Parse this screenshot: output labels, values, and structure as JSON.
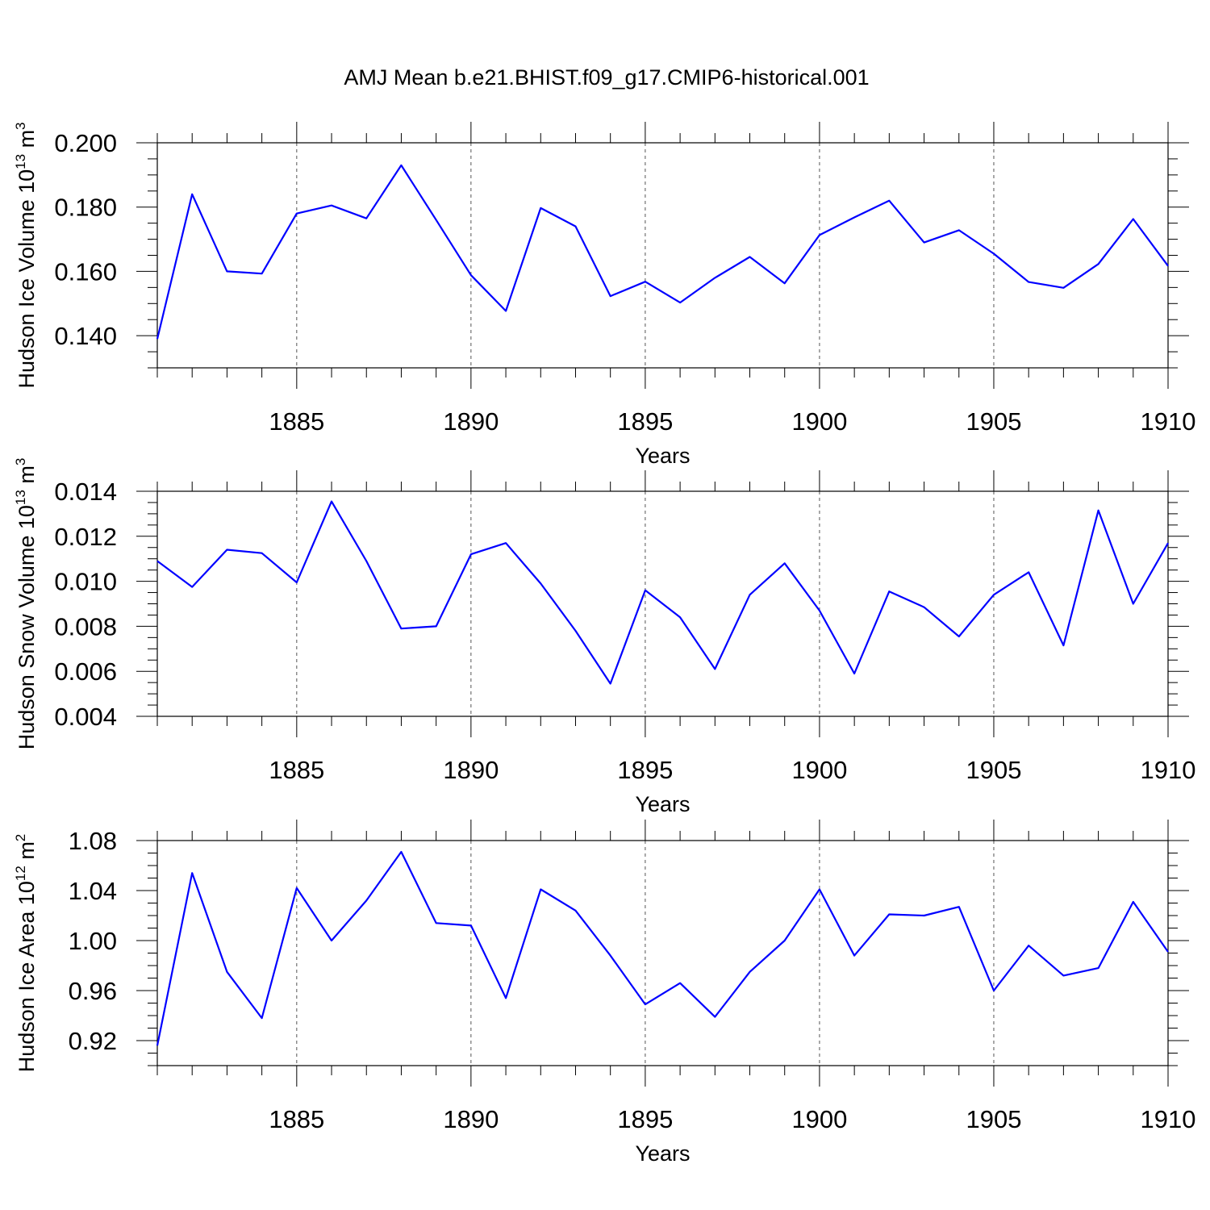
{
  "title": "AMJ Mean b.e21.BHIST.f09_g17.CMIP6-historical.001",
  "colors": {
    "line": "#0000ff",
    "axis": "#000000",
    "grid": "#555555",
    "background": "#ffffff"
  },
  "chart_data": [
    {
      "type": "line",
      "ylabel": "Hudson Ice Volume 10",
      "ylabel_exp": "13",
      "ylabel_unit": " m",
      "ylabel_unit_exp": "3",
      "xlabel": "Years",
      "xlim": [
        1881,
        1910
      ],
      "ylim": [
        0.13,
        0.2
      ],
      "yticks": [
        0.14,
        0.16,
        0.18,
        0.2
      ],
      "ytick_labels": [
        "0.140",
        "0.160",
        "0.180",
        "0.200"
      ],
      "xticks": [
        1885,
        1890,
        1895,
        1900,
        1905,
        1910
      ],
      "xtick_labels": [
        "1885",
        "1890",
        "1895",
        "1900",
        "1905",
        "1910"
      ],
      "grid": "vertical dashed at major x ticks",
      "series": [
        {
          "x": [
            1881,
            1882,
            1883,
            1884,
            1885,
            1886,
            1887,
            1888,
            1889,
            1890,
            1891,
            1892,
            1893,
            1894,
            1895,
            1896,
            1897,
            1898,
            1899,
            1900,
            1901,
            1902,
            1903,
            1904,
            1905,
            1906,
            1907,
            1908,
            1909,
            1910
          ],
          "values": [
            0.139,
            0.184,
            0.16,
            0.1593,
            0.178,
            0.1805,
            0.1765,
            0.193,
            0.176,
            0.1588,
            0.1477,
            0.1797,
            0.174,
            0.1523,
            0.1568,
            0.1503,
            0.158,
            0.1645,
            0.1563,
            0.1713,
            0.1768,
            0.182,
            0.169,
            0.1728,
            0.1655,
            0.1567,
            0.1549,
            0.1623,
            0.1763,
            0.1617
          ]
        }
      ]
    },
    {
      "type": "line",
      "ylabel": "Hudson Snow Volume 10",
      "ylabel_exp": "13",
      "ylabel_unit": " m",
      "ylabel_unit_exp": "3",
      "xlabel": "Years",
      "xlim": [
        1881,
        1910
      ],
      "ylim": [
        0.004,
        0.014
      ],
      "yticks": [
        0.004,
        0.006,
        0.008,
        0.01,
        0.012,
        0.014
      ],
      "ytick_labels": [
        "0.004",
        "0.006",
        "0.008",
        "0.010",
        "0.012",
        "0.014"
      ],
      "xticks": [
        1885,
        1890,
        1895,
        1900,
        1905,
        1910
      ],
      "xtick_labels": [
        "1885",
        "1890",
        "1895",
        "1900",
        "1905",
        "1910"
      ],
      "grid": "vertical dashed at major x ticks",
      "series": [
        {
          "x": [
            1881,
            1882,
            1883,
            1884,
            1885,
            1886,
            1887,
            1888,
            1889,
            1890,
            1891,
            1892,
            1893,
            1894,
            1895,
            1896,
            1897,
            1898,
            1899,
            1900,
            1901,
            1902,
            1903,
            1904,
            1905,
            1906,
            1907,
            1908,
            1909,
            1910
          ],
          "values": [
            0.0109,
            0.00975,
            0.0114,
            0.01125,
            0.00995,
            0.01355,
            0.0109,
            0.0079,
            0.008,
            0.0112,
            0.0117,
            0.0099,
            0.0078,
            0.00545,
            0.0096,
            0.0084,
            0.0061,
            0.0094,
            0.0108,
            0.0087,
            0.0059,
            0.00955,
            0.00885,
            0.00755,
            0.0094,
            0.0104,
            0.00715,
            0.01315,
            0.009,
            0.0117
          ]
        }
      ]
    },
    {
      "type": "line",
      "ylabel": "Hudson Ice Area 10",
      "ylabel_exp": "12",
      "ylabel_unit": " m",
      "ylabel_unit_exp": "2",
      "xlabel": "Years",
      "xlim": [
        1881,
        1910
      ],
      "ylim": [
        0.9,
        1.08
      ],
      "yticks": [
        0.92,
        0.96,
        1.0,
        1.04,
        1.08
      ],
      "ytick_labels": [
        "0.92",
        "0.96",
        "1.00",
        "1.04",
        "1.08"
      ],
      "xticks": [
        1885,
        1890,
        1895,
        1900,
        1905,
        1910
      ],
      "xtick_labels": [
        "1885",
        "1890",
        "1895",
        "1900",
        "1905",
        "1910"
      ],
      "grid": "vertical dashed at major x ticks",
      "series": [
        {
          "x": [
            1881,
            1882,
            1883,
            1884,
            1885,
            1886,
            1887,
            1888,
            1889,
            1890,
            1891,
            1892,
            1893,
            1894,
            1895,
            1896,
            1897,
            1898,
            1899,
            1900,
            1901,
            1902,
            1903,
            1904,
            1905,
            1906,
            1907,
            1908,
            1909,
            1910
          ],
          "values": [
            0.916,
            1.054,
            0.975,
            0.938,
            1.042,
            1.0,
            1.032,
            1.071,
            1.014,
            1.012,
            0.954,
            1.041,
            1.024,
            0.988,
            0.949,
            0.966,
            0.939,
            0.975,
            1.0,
            1.041,
            0.988,
            1.021,
            1.02,
            1.027,
            0.96,
            0.996,
            0.972,
            0.978,
            1.031,
            0.991
          ]
        }
      ]
    }
  ]
}
